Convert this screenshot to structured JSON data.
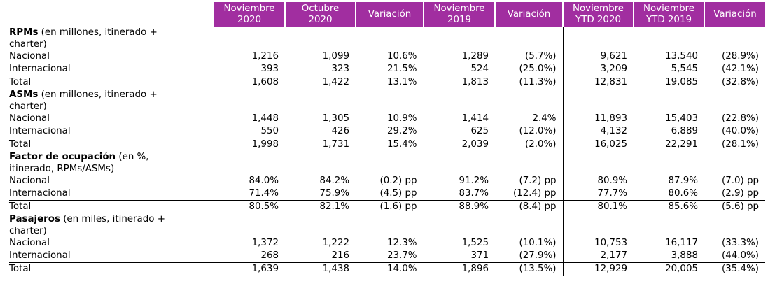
{
  "columns": [
    "Noviembre 2020",
    "Octubre 2020",
    "Variación",
    "Noviembre 2019",
    "Variación",
    "Noviembre YTD 2020",
    "Noviembre YTD 2019",
    "Variación"
  ],
  "header": {
    "c1": [
      "Noviembre",
      "2020"
    ],
    "c2": [
      "Octubre",
      "2020"
    ],
    "c3": "Variación",
    "c4": [
      "Noviembre",
      "2019"
    ],
    "c5": "Variación",
    "c6": [
      "Noviembre",
      "YTD 2020"
    ],
    "c7": [
      "Noviembre",
      "YTD 2019"
    ],
    "c8": "Variación"
  },
  "colors": {
    "header_bg": "#a12ea0",
    "header_text": "#ffffff"
  },
  "sections": [
    {
      "title": "RPMs",
      "subtitle": " (en millones, itinerado + charter)",
      "rows": [
        {
          "label": "Nacional",
          "values": [
            "1,216",
            "1,099",
            "10.6%",
            "1,289",
            "(5.7%)",
            "9,621",
            "13,540",
            "(28.9%)"
          ]
        },
        {
          "label": "Internacional",
          "values": [
            "393",
            "323",
            "21.5%",
            "524",
            "(25.0%)",
            "3,209",
            "5,545",
            "(42.1%)"
          ]
        }
      ],
      "total": {
        "label": "Total",
        "values": [
          "1,608",
          "1,422",
          "13.1%",
          "1,813",
          "(11.3%)",
          "12,831",
          "19,085",
          "(32.8%)"
        ]
      }
    },
    {
      "title": "ASMs",
      "subtitle": " (en millones, itinerado + charter)",
      "rows": [
        {
          "label": "Nacional",
          "values": [
            "1,448",
            "1,305",
            "10.9%",
            "1,414",
            "2.4%",
            "11,893",
            "15,403",
            "(22.8%)"
          ]
        },
        {
          "label": "Internacional",
          "values": [
            "550",
            "426",
            "29.2%",
            "625",
            "(12.0%)",
            "4,132",
            "6,889",
            "(40.0%)"
          ]
        }
      ],
      "total": {
        "label": "Total",
        "values": [
          "1,998",
          "1,731",
          "15.4%",
          "2,039",
          "(2.0%)",
          "16,025",
          "22,291",
          "(28.1%)"
        ]
      }
    },
    {
      "title": "Factor de ocupación",
      "subtitle": " (en %, itinerado, RPMs/ASMs)",
      "rows": [
        {
          "label": "Nacional",
          "values": [
            "84.0%",
            "84.2%",
            "(0.2) pp",
            "91.2%",
            "(7.2) pp",
            "80.9%",
            "87.9%",
            "(7.0) pp"
          ]
        },
        {
          "label": "Internacional",
          "values": [
            "71.4%",
            "75.9%",
            "(4.5) pp",
            "83.7%",
            "(12.4) pp",
            "77.7%",
            "80.6%",
            "(2.9) pp"
          ]
        }
      ],
      "total": {
        "label": "Total",
        "values": [
          "80.5%",
          "82.1%",
          "(1.6) pp",
          "88.9%",
          "(8.4) pp",
          "80.1%",
          "85.6%",
          "(5.6) pp"
        ]
      }
    },
    {
      "title": "Pasajeros",
      "subtitle": " (en miles, itinerado + charter)",
      "rows": [
        {
          "label": "Nacional",
          "values": [
            "1,372",
            "1,222",
            "12.3%",
            "1,525",
            "(10.1%)",
            "10,753",
            "16,117",
            "(33.3%)"
          ]
        },
        {
          "label": "Internacional",
          "values": [
            "268",
            "216",
            "23.7%",
            "371",
            "(27.9%)",
            "2,177",
            "3,888",
            "(44.0%)"
          ]
        }
      ],
      "total": {
        "label": "Total",
        "values": [
          "1,639",
          "1,438",
          "14.0%",
          "1,896",
          "(13.5%)",
          "12,929",
          "20,005",
          "(35.4%)"
        ]
      }
    }
  ]
}
